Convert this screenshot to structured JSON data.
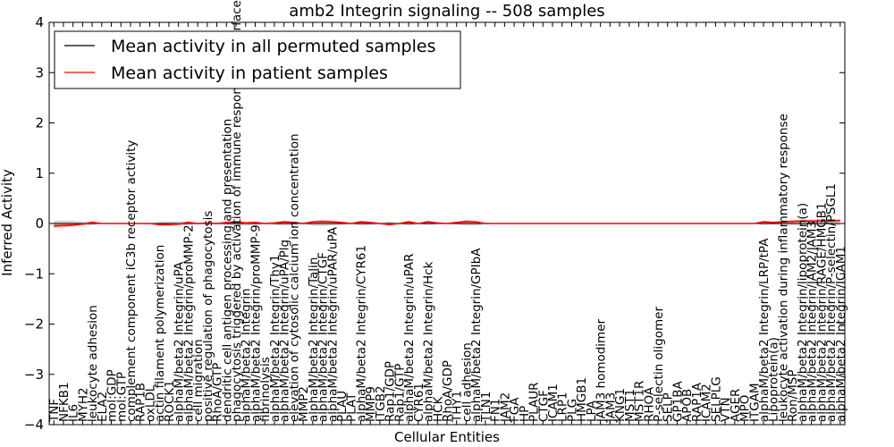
{
  "chart_data": {
    "type": "line",
    "title": "amb2 Integrin signaling -- 508 samples",
    "xlabel": "Cellular Entities",
    "ylabel": "Inferred Activity",
    "ylim": [
      -4,
      4
    ],
    "yticks": [
      -4,
      -3,
      -2,
      -1,
      0,
      1,
      2,
      3,
      4
    ],
    "ytick_labels": [
      "−4",
      "−3",
      "−2",
      "−1",
      "0",
      "1",
      "2",
      "3",
      "4"
    ],
    "grid": false,
    "legend_position": "top-left",
    "categories": [
      "TNF",
      "NFKB1",
      "IL6",
      "MYH2",
      "leukocyte adhesion",
      "ELA2",
      "mol:GDP",
      "mol:GTP",
      "complement component iC3b receptor activity",
      "RAP1B",
      "oxLDL",
      "actin filament polymerization",
      "ROCK1",
      "alphaM/beta2 Integrin/uPA",
      "alphaM/beta2 Integrin/proMMP-2",
      "cell migration",
      "positive regulation of phagocytosis",
      "RhoA/GTP",
      "dendritic cell antigen processing and presentation",
      "phagocytosis triggered by activation of immune response cell surface activator",
      "alphaM/beta2 Integrin",
      "alphaM/beta2 Integrin/proMMP-9",
      "fibrinolysis",
      "alphaM/beta2 Integrin/Thy1",
      "alphaM/beta2 Integrin/uPA/Plg",
      "elevation of cytosolic calcium ion concentration",
      "MMP2",
      "alphaM/beta2 Integrin/Talin",
      "alphaM/beta2 Integrin/CTGF",
      "alphaM/beta2 Integrin/uPAR/uPA",
      "PLAU",
      "PLAT",
      "alphaM/beta2 Integrin/CYR61",
      "MMP9",
      "ITGB2",
      "Rap1/GDP",
      "Rap1/GTP",
      "alphaM/beta2 Integrin/uPAR",
      "CYR61",
      "alphaM/beta2 Integrin/Hck",
      "HCK",
      "RhoA/GDP",
      "THY1",
      "cell adhesion",
      "alphaM/beta2 Integrin/GPIbA",
      "TLN1",
      "FN1",
      "JAM2",
      "FGA",
      "HP",
      "PLAUR",
      "CTGF",
      "ICAM1",
      "LRP1",
      "PLG",
      "HMGB1",
      "LPA",
      "JAM3 homodimer",
      "JAM3",
      "KNG1",
      "MST1",
      "MST1R",
      "RHOA",
      "P-selectin oligomer",
      "SELP",
      "GP1BA",
      "APOB",
      "RAP1A",
      "ICAM2",
      "SELPLG",
      "VTN",
      "AGER",
      "MPO",
      "ITGAM",
      "alphaM/beta2 Integrin/LRP/tPA",
      "Lipoprotein(a)",
      "leukocyte activation during inflammatory response",
      "Ron/MSP",
      "alphaM/beta2 Integrin/lipoprotein(a)",
      "alphaM/beta2 Integrin/JAM2/JAM3",
      "alphaM/beta2 Integrin/RAGE/HMGB1",
      "alphaM/beta2 Integrin/P-selectin/PSGL1",
      "alphaM/beta2 Integrin/ICAM1"
    ],
    "series": [
      {
        "name": "Mean activity in all permuted samples",
        "color": "#000000",
        "values": [
          0.0,
          0.0,
          0.0,
          0.0,
          0.0,
          0.0,
          0.0,
          0.0,
          0.0,
          0.0,
          0.0,
          0.0,
          0.0,
          0.0,
          0.0,
          0.0,
          0.0,
          0.0,
          0.0,
          0.0,
          0.0,
          0.0,
          0.0,
          0.0,
          0.0,
          0.0,
          0.0,
          0.0,
          0.0,
          0.0,
          0.0,
          0.0,
          0.0,
          0.0,
          0.0,
          0.0,
          0.0,
          0.0,
          0.0,
          0.0,
          0.0,
          0.0,
          0.0,
          0.0,
          0.0,
          0.0,
          0.0,
          0.0,
          0.0,
          0.0,
          0.0,
          0.0,
          0.0,
          0.0,
          0.0,
          0.0,
          0.0,
          0.0,
          0.0,
          0.0,
          0.0,
          0.0,
          0.0,
          0.0,
          0.0,
          0.0,
          0.0,
          0.0,
          0.0,
          0.0,
          0.0,
          0.0,
          0.0,
          0.0,
          0.0,
          0.0,
          0.0,
          0.0,
          0.0,
          0.0,
          0.0,
          0.0,
          0.0
        ]
      },
      {
        "name": "Mean activity in patient samples",
        "color": "#ff0000",
        "values": [
          -0.05,
          -0.04,
          -0.03,
          -0.01,
          0.02,
          0.0,
          0.0,
          0.0,
          0.0,
          0.0,
          0.0,
          -0.02,
          -0.02,
          -0.01,
          0.02,
          0.0,
          0.01,
          0.0,
          0.02,
          0.03,
          0.01,
          0.02,
          0.0,
          0.01,
          0.03,
          0.02,
          0.0,
          0.03,
          0.04,
          0.03,
          0.02,
          0.0,
          0.03,
          0.02,
          0.0,
          -0.02,
          0.0,
          0.03,
          0.0,
          0.03,
          0.01,
          0.0,
          0.02,
          0.04,
          0.03,
          0.0,
          0.0,
          0.0,
          0.0,
          0.0,
          0.0,
          0.0,
          0.0,
          0.0,
          0.0,
          0.0,
          0.0,
          0.0,
          0.0,
          0.0,
          0.0,
          0.0,
          0.0,
          0.0,
          0.0,
          0.0,
          0.0,
          0.0,
          0.0,
          0.0,
          0.0,
          0.0,
          0.0,
          0.0,
          0.03,
          0.02,
          0.03,
          0.04,
          0.05,
          0.05,
          0.05,
          0.05,
          0.06
        ]
      }
    ],
    "patient_band_halfwidth": [
      0.04,
      0.04,
      0.03,
      0.02,
      0.03,
      0.01,
      0.01,
      0.01,
      0.01,
      0.01,
      0.01,
      0.03,
      0.03,
      0.02,
      0.03,
      0.01,
      0.01,
      0.01,
      0.02,
      0.03,
      0.02,
      0.02,
      0.01,
      0.02,
      0.03,
      0.02,
      0.01,
      0.03,
      0.03,
      0.03,
      0.02,
      0.01,
      0.03,
      0.02,
      0.01,
      0.02,
      0.01,
      0.03,
      0.01,
      0.03,
      0.02,
      0.01,
      0.02,
      0.03,
      0.03,
      0.01,
      0.01,
      0.01,
      0.01,
      0.01,
      0.01,
      0.01,
      0.01,
      0.01,
      0.01,
      0.01,
      0.01,
      0.01,
      0.01,
      0.01,
      0.01,
      0.01,
      0.01,
      0.01,
      0.01,
      0.01,
      0.01,
      0.01,
      0.01,
      0.01,
      0.01,
      0.01,
      0.01,
      0.01,
      0.03,
      0.02,
      0.03,
      0.03,
      0.03,
      0.03,
      0.03,
      0.03,
      0.03
    ],
    "permuted_band_halfwidth": [
      0.05,
      0.06,
      0.05,
      0.04,
      0.03,
      0.01,
      0.01,
      0.01,
      0.01,
      0.01,
      0.01,
      0.04,
      0.04,
      0.04,
      0.03,
      0.02,
      0.02,
      0.02,
      0.03,
      0.04,
      0.04,
      0.03,
      0.02,
      0.03,
      0.04,
      0.03,
      0.02,
      0.04,
      0.05,
      0.04,
      0.03,
      0.02,
      0.04,
      0.03,
      0.02,
      0.04,
      0.02,
      0.04,
      0.02,
      0.03,
      0.02,
      0.02,
      0.02,
      0.04,
      0.04,
      0.02,
      0.01,
      0.01,
      0.01,
      0.01,
      0.01,
      0.01,
      0.01,
      0.01,
      0.01,
      0.01,
      0.01,
      0.01,
      0.01,
      0.01,
      0.01,
      0.01,
      0.01,
      0.01,
      0.01,
      0.01,
      0.01,
      0.01,
      0.01,
      0.01,
      0.01,
      0.01,
      0.01,
      0.01,
      0.03,
      0.02,
      0.03,
      0.03,
      0.03,
      0.03,
      0.03,
      0.03,
      0.03
    ]
  }
}
